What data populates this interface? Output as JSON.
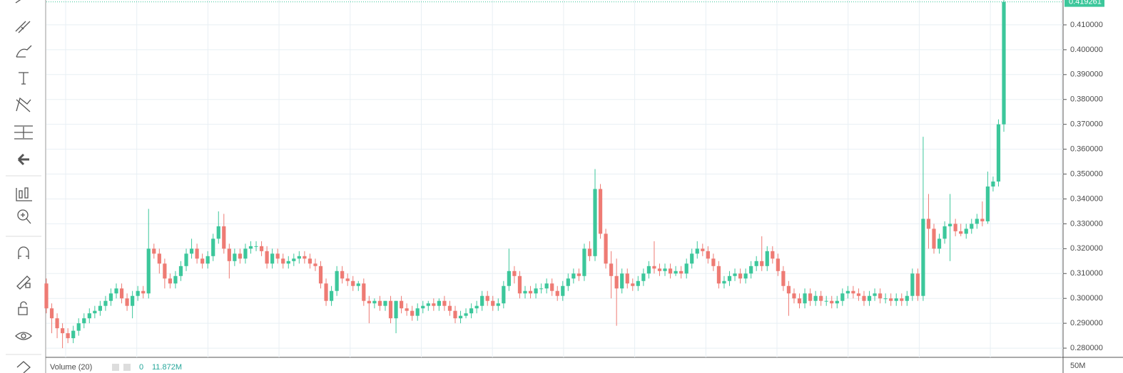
{
  "chart_data": {
    "type": "candlestick",
    "up_color": "#3cc79b",
    "down_color": "#ee7b74",
    "grid": true,
    "ylim": [
      0.2763,
      0.42
    ],
    "yticks": [
      {
        "value": 0.28,
        "label": "0.280000"
      },
      {
        "value": 0.29,
        "label": "0.290000"
      },
      {
        "value": 0.3,
        "label": "0.300000"
      },
      {
        "value": 0.31,
        "label": "0.310000"
      },
      {
        "value": 0.32,
        "label": "0.320000"
      },
      {
        "value": 0.33,
        "label": "0.330000"
      },
      {
        "value": 0.34,
        "label": "0.340000"
      },
      {
        "value": 0.35,
        "label": "0.350000"
      },
      {
        "value": 0.36,
        "label": "0.360000"
      },
      {
        "value": 0.37,
        "label": "0.370000"
      },
      {
        "value": 0.38,
        "label": "0.380000"
      },
      {
        "value": 0.39,
        "label": "0.390000"
      },
      {
        "value": 0.4,
        "label": "0.400000"
      },
      {
        "value": 0.41,
        "label": "0.410000"
      }
    ],
    "open": [
      0.306,
      0.296,
      0.292,
      0.288,
      0.286,
      0.284,
      0.287,
      0.29,
      0.292,
      0.294,
      0.295,
      0.297,
      0.299,
      0.302,
      0.304,
      0.3,
      0.297,
      0.301,
      0.303,
      0.302,
      0.32,
      0.318,
      0.314,
      0.308,
      0.306,
      0.309,
      0.313,
      0.318,
      0.32,
      0.316,
      0.314,
      0.317,
      0.324,
      0.329,
      0.32,
      0.315,
      0.318,
      0.316,
      0.32,
      0.321,
      0.321,
      0.319,
      0.314,
      0.318,
      0.316,
      0.314,
      0.315,
      0.316,
      0.317,
      0.316,
      0.314,
      0.313,
      0.306,
      0.299,
      0.303,
      0.311,
      0.308,
      0.307,
      0.305,
      0.306,
      0.299,
      0.298,
      0.299,
      0.297,
      0.299,
      0.292,
      0.299,
      0.296,
      0.295,
      0.293,
      0.296,
      0.297,
      0.298,
      0.297,
      0.299,
      0.297,
      0.295,
      0.292,
      0.293,
      0.294,
      0.296,
      0.297,
      0.301,
      0.299,
      0.297,
      0.298,
      0.305,
      0.311,
      0.309,
      0.302,
      0.303,
      0.302,
      0.304,
      0.304,
      0.306,
      0.303,
      0.301,
      0.305,
      0.308,
      0.31,
      0.309,
      0.32,
      0.317,
      0.344,
      0.326,
      0.314,
      0.309,
      0.304,
      0.31,
      0.306,
      0.305,
      0.307,
      0.31,
      0.313,
      0.312,
      0.311,
      0.312,
      0.31,
      0.311,
      0.31,
      0.314,
      0.318,
      0.32,
      0.319,
      0.316,
      0.313,
      0.306,
      0.307,
      0.309,
      0.31,
      0.308,
      0.31,
      0.313,
      0.315,
      0.313,
      0.319,
      0.316,
      0.311,
      0.305,
      0.302,
      0.3,
      0.298,
      0.302,
      0.299,
      0.301,
      0.299,
      0.299,
      0.298,
      0.299,
      0.302,
      0.303,
      0.302,
      0.301,
      0.299,
      0.301,
      0.302,
      0.3,
      0.3,
      0.299,
      0.3,
      0.299,
      0.301,
      0.31,
      0.301,
      0.332,
      0.328,
      0.32,
      0.324,
      0.329,
      0.33,
      0.327,
      0.326,
      0.328,
      0.33,
      0.332,
      0.331,
      0.345,
      0.347,
      0.37
    ],
    "high": [
      0.308,
      0.298,
      0.294,
      0.29,
      0.288,
      0.289,
      0.292,
      0.294,
      0.296,
      0.297,
      0.299,
      0.301,
      0.304,
      0.306,
      0.306,
      0.302,
      0.303,
      0.305,
      0.305,
      0.336,
      0.322,
      0.32,
      0.316,
      0.31,
      0.311,
      0.315,
      0.32,
      0.324,
      0.322,
      0.318,
      0.319,
      0.326,
      0.335,
      0.334,
      0.322,
      0.32,
      0.32,
      0.322,
      0.323,
      0.323,
      0.323,
      0.321,
      0.32,
      0.32,
      0.318,
      0.317,
      0.318,
      0.319,
      0.319,
      0.318,
      0.316,
      0.315,
      0.308,
      0.305,
      0.313,
      0.313,
      0.31,
      0.309,
      0.307,
      0.308,
      0.301,
      0.3,
      0.301,
      0.299,
      0.301,
      0.299,
      0.301,
      0.298,
      0.297,
      0.298,
      0.299,
      0.299,
      0.3,
      0.3,
      0.301,
      0.299,
      0.297,
      0.295,
      0.296,
      0.298,
      0.299,
      0.303,
      0.303,
      0.301,
      0.3,
      0.307,
      0.32,
      0.313,
      0.311,
      0.305,
      0.305,
      0.306,
      0.306,
      0.308,
      0.308,
      0.305,
      0.307,
      0.31,
      0.312,
      0.312,
      0.322,
      0.323,
      0.352,
      0.346,
      0.328,
      0.319,
      0.316,
      0.312,
      0.312,
      0.308,
      0.309,
      0.312,
      0.315,
      0.323,
      0.314,
      0.314,
      0.314,
      0.313,
      0.313,
      0.316,
      0.32,
      0.323,
      0.322,
      0.321,
      0.318,
      0.315,
      0.309,
      0.311,
      0.312,
      0.312,
      0.312,
      0.315,
      0.317,
      0.325,
      0.321,
      0.321,
      0.318,
      0.313,
      0.307,
      0.304,
      0.302,
      0.304,
      0.304,
      0.303,
      0.303,
      0.301,
      0.301,
      0.301,
      0.304,
      0.305,
      0.305,
      0.304,
      0.303,
      0.303,
      0.304,
      0.304,
      0.302,
      0.302,
      0.302,
      0.302,
      0.303,
      0.312,
      0.312,
      0.365,
      0.342,
      0.33,
      0.326,
      0.331,
      0.342,
      0.332,
      0.33,
      0.33,
      0.332,
      0.334,
      0.339,
      0.351,
      0.349,
      0.372,
      0.42
    ],
    "low": [
      0.294,
      0.286,
      0.284,
      0.28,
      0.282,
      0.282,
      0.285,
      0.288,
      0.29,
      0.292,
      0.293,
      0.295,
      0.297,
      0.3,
      0.298,
      0.295,
      0.292,
      0.299,
      0.3,
      0.3,
      0.316,
      0.31,
      0.304,
      0.304,
      0.304,
      0.307,
      0.311,
      0.316,
      0.314,
      0.312,
      0.312,
      0.315,
      0.322,
      0.318,
      0.308,
      0.313,
      0.314,
      0.314,
      0.318,
      0.319,
      0.317,
      0.312,
      0.312,
      0.314,
      0.312,
      0.312,
      0.313,
      0.314,
      0.314,
      0.312,
      0.311,
      0.304,
      0.297,
      0.297,
      0.301,
      0.306,
      0.305,
      0.303,
      0.303,
      0.297,
      0.29,
      0.296,
      0.295,
      0.295,
      0.29,
      0.286,
      0.294,
      0.293,
      0.291,
      0.291,
      0.294,
      0.295,
      0.295,
      0.295,
      0.295,
      0.293,
      0.29,
      0.29,
      0.292,
      0.292,
      0.294,
      0.295,
      0.297,
      0.295,
      0.295,
      0.296,
      0.303,
      0.306,
      0.3,
      0.3,
      0.3,
      0.3,
      0.302,
      0.302,
      0.301,
      0.299,
      0.299,
      0.303,
      0.306,
      0.307,
      0.307,
      0.315,
      0.315,
      0.324,
      0.312,
      0.3,
      0.289,
      0.302,
      0.304,
      0.303,
      0.303,
      0.305,
      0.308,
      0.31,
      0.309,
      0.309,
      0.308,
      0.309,
      0.308,
      0.308,
      0.312,
      0.316,
      0.317,
      0.314,
      0.311,
      0.304,
      0.304,
      0.305,
      0.307,
      0.306,
      0.306,
      0.308,
      0.311,
      0.311,
      0.311,
      0.314,
      0.309,
      0.303,
      0.293,
      0.298,
      0.296,
      0.296,
      0.297,
      0.297,
      0.297,
      0.297,
      0.296,
      0.296,
      0.297,
      0.3,
      0.3,
      0.299,
      0.297,
      0.297,
      0.299,
      0.298,
      0.298,
      0.297,
      0.297,
      0.297,
      0.297,
      0.299,
      0.299,
      0.299,
      0.32,
      0.318,
      0.318,
      0.322,
      0.315,
      0.325,
      0.325,
      0.324,
      0.326,
      0.328,
      0.329,
      0.33,
      0.343,
      0.345,
      0.367
    ],
    "close": [
      0.296,
      0.292,
      0.288,
      0.286,
      0.284,
      0.287,
      0.29,
      0.292,
      0.294,
      0.295,
      0.297,
      0.299,
      0.302,
      0.304,
      0.3,
      0.297,
      0.301,
      0.303,
      0.302,
      0.32,
      0.318,
      0.314,
      0.308,
      0.306,
      0.309,
      0.313,
      0.318,
      0.32,
      0.316,
      0.314,
      0.317,
      0.324,
      0.329,
      0.32,
      0.315,
      0.318,
      0.316,
      0.32,
      0.321,
      0.321,
      0.319,
      0.314,
      0.318,
      0.316,
      0.314,
      0.315,
      0.316,
      0.317,
      0.316,
      0.314,
      0.313,
      0.306,
      0.299,
      0.303,
      0.311,
      0.308,
      0.307,
      0.305,
      0.306,
      0.299,
      0.298,
      0.299,
      0.297,
      0.299,
      0.292,
      0.299,
      0.296,
      0.295,
      0.293,
      0.296,
      0.297,
      0.298,
      0.297,
      0.299,
      0.297,
      0.295,
      0.292,
      0.293,
      0.294,
      0.296,
      0.297,
      0.301,
      0.299,
      0.297,
      0.298,
      0.305,
      0.311,
      0.309,
      0.302,
      0.303,
      0.302,
      0.304,
      0.304,
      0.306,
      0.303,
      0.301,
      0.305,
      0.308,
      0.31,
      0.309,
      0.32,
      0.317,
      0.344,
      0.326,
      0.314,
      0.309,
      0.304,
      0.31,
      0.306,
      0.305,
      0.307,
      0.31,
      0.313,
      0.312,
      0.311,
      0.312,
      0.31,
      0.311,
      0.31,
      0.314,
      0.318,
      0.32,
      0.319,
      0.316,
      0.313,
      0.306,
      0.307,
      0.309,
      0.31,
      0.308,
      0.31,
      0.313,
      0.315,
      0.313,
      0.319,
      0.316,
      0.311,
      0.305,
      0.302,
      0.3,
      0.298,
      0.302,
      0.299,
      0.301,
      0.299,
      0.299,
      0.298,
      0.299,
      0.302,
      0.303,
      0.302,
      0.301,
      0.299,
      0.301,
      0.302,
      0.3,
      0.3,
      0.299,
      0.3,
      0.299,
      0.301,
      0.31,
      0.301,
      0.332,
      0.328,
      0.32,
      0.324,
      0.329,
      0.33,
      0.327,
      0.326,
      0.328,
      0.33,
      0.332,
      0.331,
      0.345,
      0.347,
      0.37,
      0.419261
    ],
    "volume_pane": {
      "title": "Volume (20)",
      "readings": [
        "0",
        "11.872M"
      ],
      "axis_label": "50M"
    }
  }
}
